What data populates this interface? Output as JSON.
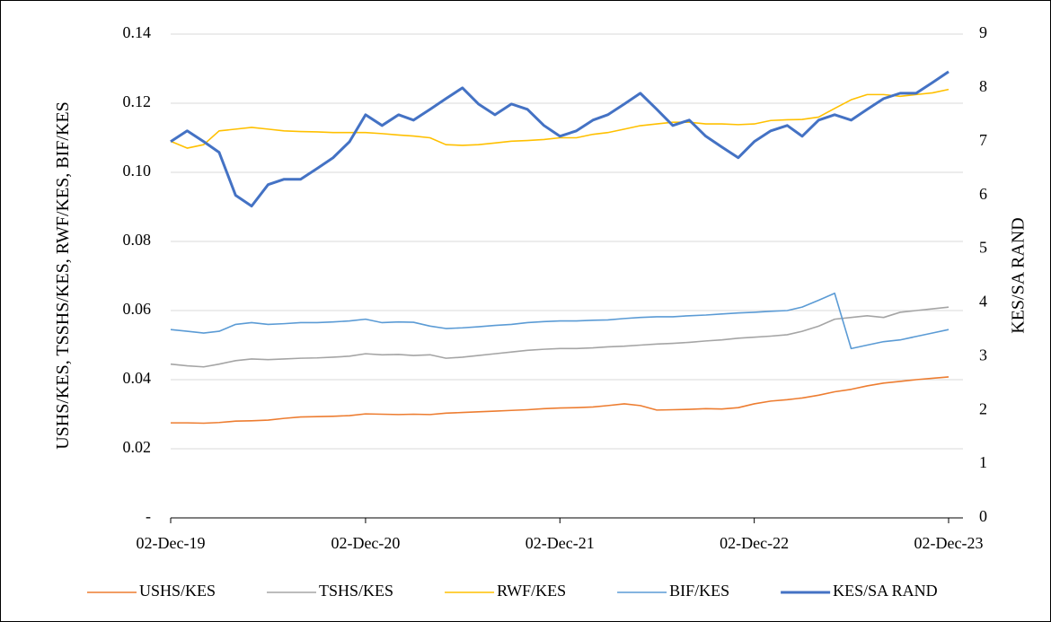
{
  "chart_data": {
    "type": "line",
    "x": [
      "2019-12-02",
      "2020-01-02",
      "2020-02-02",
      "2020-03-02",
      "2020-04-02",
      "2020-05-02",
      "2020-06-02",
      "2020-07-02",
      "2020-08-02",
      "2020-09-02",
      "2020-10-02",
      "2020-11-02",
      "2020-12-02",
      "2021-01-02",
      "2021-02-02",
      "2021-03-02",
      "2021-04-02",
      "2021-05-02",
      "2021-06-02",
      "2021-07-02",
      "2021-08-02",
      "2021-09-02",
      "2021-10-02",
      "2021-11-02",
      "2021-12-02",
      "2022-01-02",
      "2022-02-02",
      "2022-03-02",
      "2022-04-02",
      "2022-05-02",
      "2022-06-02",
      "2022-07-02",
      "2022-08-02",
      "2022-09-02",
      "2022-10-02",
      "2022-11-02",
      "2022-12-02",
      "2023-01-02",
      "2023-02-02",
      "2023-03-02",
      "2023-04-02",
      "2023-05-02",
      "2023-06-02",
      "2023-07-02",
      "2023-08-02",
      "2023-09-02",
      "2023-10-02",
      "2023-11-02",
      "2023-12-02"
    ],
    "xlim": [
      "2019-12-02",
      "2023-12-29"
    ],
    "xticks": [
      {
        "value": "2019-12-02",
        "label": "02-Dec-19"
      },
      {
        "value": "2020-12-02",
        "label": "02-Dec-20"
      },
      {
        "value": "2021-12-02",
        "label": "02-Dec-21"
      },
      {
        "value": "2022-12-02",
        "label": "02-Dec-22"
      },
      {
        "value": "2023-12-02",
        "label": "02-Dec-23"
      }
    ],
    "ylim": [
      0,
      0.14
    ],
    "yticks": [
      {
        "value": 0,
        "label": "-"
      },
      0.02,
      0.04,
      0.06,
      0.08,
      {
        "value": 0.1,
        "label": "0.10"
      },
      0.12,
      0.14
    ],
    "y2lim": [
      0,
      9
    ],
    "y2ticks": [
      0,
      1,
      2,
      3,
      4,
      5,
      6,
      7,
      8,
      9
    ],
    "ylabel": "USHS/KES, TSSHS/KES, RWF/KES, BIF/KES",
    "y2label": "KES/SA RAND",
    "grid": true,
    "legend": "bottom",
    "series": [
      {
        "name": "USHS/KES",
        "color": "#ED7D31",
        "values": [
          0.0275,
          0.0275,
          0.0274,
          0.0276,
          0.028,
          0.0281,
          0.0283,
          0.0288,
          0.0292,
          0.0293,
          0.0294,
          0.0296,
          0.0301,
          0.03,
          0.0299,
          0.03,
          0.0299,
          0.0303,
          0.0305,
          0.0307,
          0.0309,
          0.0311,
          0.0313,
          0.0316,
          0.0318,
          0.0319,
          0.0321,
          0.0325,
          0.033,
          0.0325,
          0.0312,
          0.0313,
          0.0314,
          0.0316,
          0.0315,
          0.0319,
          0.033,
          0.0338,
          0.0342,
          0.0347,
          0.0355,
          0.0365,
          0.0372,
          0.0382,
          0.039,
          0.0395,
          0.04,
          0.0404,
          0.0408
        ]
      },
      {
        "name": "TSHS/KES",
        "color": "#A5A5A5",
        "values": [
          0.0445,
          0.044,
          0.0437,
          0.0445,
          0.0455,
          0.046,
          0.0458,
          0.046,
          0.0462,
          0.0463,
          0.0465,
          0.0468,
          0.0475,
          0.0472,
          0.0473,
          0.047,
          0.0472,
          0.0462,
          0.0465,
          0.047,
          0.0475,
          0.048,
          0.0485,
          0.0488,
          0.049,
          0.049,
          0.0492,
          0.0495,
          0.0497,
          0.05,
          0.0503,
          0.0505,
          0.0508,
          0.0512,
          0.0515,
          0.052,
          0.0523,
          0.0526,
          0.053,
          0.054,
          0.0555,
          0.0575,
          0.058,
          0.0585,
          0.058,
          0.0595,
          0.06,
          0.0605,
          0.061
        ]
      },
      {
        "name": "RWF/KES",
        "color": "#FFC000",
        "values": [
          0.109,
          0.107,
          0.108,
          0.112,
          0.1125,
          0.113,
          0.1125,
          0.112,
          0.1118,
          0.1117,
          0.1115,
          0.1115,
          0.1115,
          0.1112,
          0.1108,
          0.1105,
          0.11,
          0.108,
          0.1078,
          0.108,
          0.1085,
          0.109,
          0.1092,
          0.1095,
          0.11,
          0.11,
          0.111,
          0.1115,
          0.1125,
          0.1135,
          0.114,
          0.1145,
          0.1145,
          0.114,
          0.114,
          0.1138,
          0.114,
          0.115,
          0.1152,
          0.1153,
          0.116,
          0.1185,
          0.121,
          0.1225,
          0.1225,
          0.122,
          0.1225,
          0.123,
          0.124
        ]
      },
      {
        "name": "BIF/KES",
        "color": "#5B9BD5",
        "values": [
          0.0545,
          0.054,
          0.0535,
          0.054,
          0.056,
          0.0565,
          0.056,
          0.0562,
          0.0565,
          0.0565,
          0.0567,
          0.057,
          0.0575,
          0.0565,
          0.0567,
          0.0566,
          0.0555,
          0.0548,
          0.055,
          0.0553,
          0.0557,
          0.056,
          0.0565,
          0.0568,
          0.057,
          0.057,
          0.0572,
          0.0573,
          0.0577,
          0.058,
          0.0582,
          0.0582,
          0.0585,
          0.0587,
          0.059,
          0.0593,
          0.0595,
          0.0598,
          0.06,
          0.061,
          0.063,
          0.065,
          0.049,
          0.05,
          0.051,
          0.0515,
          0.0525,
          0.0535,
          0.0545
        ]
      },
      {
        "name": "KES/SA RAND",
        "color": "#4472C4",
        "axis": "y2",
        "values": [
          7.0,
          7.2,
          7.0,
          6.8,
          6.0,
          5.8,
          6.2,
          6.3,
          6.3,
          6.5,
          6.7,
          7.0,
          7.5,
          7.3,
          7.5,
          7.4,
          7.6,
          7.8,
          8.0,
          7.7,
          7.5,
          7.7,
          7.6,
          7.3,
          7.1,
          7.2,
          7.4,
          7.5,
          7.7,
          7.9,
          7.6,
          7.3,
          7.4,
          7.1,
          6.9,
          6.7,
          7.0,
          7.2,
          7.3,
          7.1,
          7.4,
          7.5,
          7.4,
          7.6,
          7.8,
          7.9,
          7.9,
          8.1,
          8.3
        ]
      }
    ]
  }
}
